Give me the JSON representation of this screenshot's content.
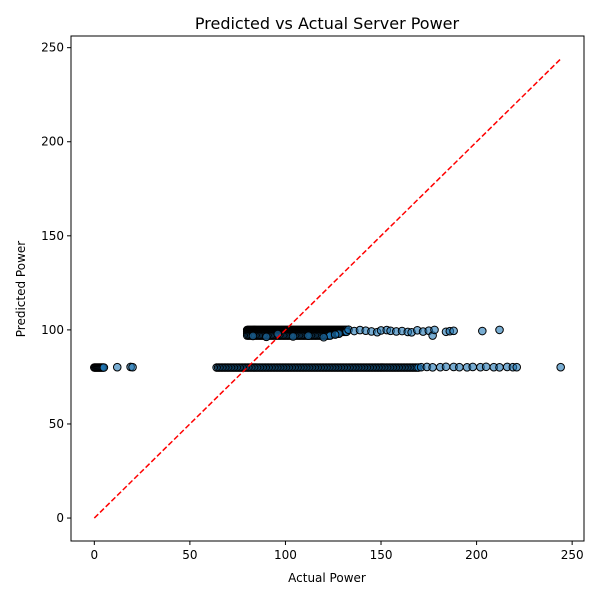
{
  "chart_data": {
    "type": "scatter",
    "title": "Predicted vs Actual Server Power",
    "xlabel": "Actual Power",
    "ylabel": "Predicted Power",
    "xlim": [
      -12.2,
      256.2
    ],
    "ylim": [
      -12.2,
      256.2
    ],
    "xticks": [
      0,
      50,
      100,
      150,
      200,
      250
    ],
    "yticks": [
      0,
      50,
      100,
      150,
      200,
      250
    ],
    "grid": false,
    "point_color": "#1f77b4",
    "point_edge_color": "#000000",
    "reference_line": {
      "x": [
        0,
        244
      ],
      "y": [
        0,
        244
      ],
      "color": "#ff0000",
      "style": "dashed"
    },
    "series": [
      {
        "clusters": [
          {
            "x_from": 0,
            "x_to": 5,
            "x_step": 0.5,
            "y": 80.0
          },
          {
            "x_from": 64,
            "x_to": 170,
            "x_step": 0.8,
            "y": 80.0
          },
          {
            "x_from": 80,
            "x_to": 132,
            "x_step": 0.5,
            "y": 100.0
          },
          {
            "x_from": 80,
            "x_to": 132,
            "x_step": 0.5,
            "y": 99.0
          },
          {
            "x_from": 80,
            "x_to": 128,
            "x_step": 0.6,
            "y": 98.0
          },
          {
            "x_from": 80,
            "x_to": 124,
            "x_step": 0.7,
            "y": 97.0
          }
        ],
        "points": [
          [
            12,
            80.2
          ],
          [
            19,
            80.3
          ],
          [
            20,
            80.2
          ],
          [
            171,
            80.2
          ],
          [
            174,
            80.3
          ],
          [
            177,
            80.1
          ],
          [
            181,
            80.2
          ],
          [
            184,
            80.4
          ],
          [
            188,
            80.3
          ],
          [
            191,
            80.2
          ],
          [
            195,
            80.1
          ],
          [
            198,
            80.3
          ],
          [
            202,
            80.2
          ],
          [
            205,
            80.4
          ],
          [
            209,
            80.2
          ],
          [
            212,
            80.1
          ],
          [
            216,
            80.3
          ],
          [
            219,
            80.2
          ],
          [
            221,
            80.2
          ],
          [
            244,
            80.2
          ],
          [
            133,
            100.1
          ],
          [
            136,
            99.4
          ],
          [
            139,
            99.9
          ],
          [
            142,
            99.6
          ],
          [
            145,
            99.2
          ],
          [
            148,
            98.8
          ],
          [
            150,
            99.7
          ],
          [
            153,
            99.9
          ],
          [
            155,
            99.5
          ],
          [
            158,
            99.2
          ],
          [
            161,
            99.4
          ],
          [
            164,
            98.9
          ],
          [
            166,
            98.7
          ],
          [
            169,
            99.8
          ],
          [
            172,
            99.1
          ],
          [
            175,
            99.6
          ],
          [
            177,
            97.0
          ],
          [
            178,
            100.0
          ],
          [
            184,
            99.0
          ],
          [
            186,
            99.3
          ],
          [
            188,
            99.5
          ],
          [
            203,
            99.4
          ],
          [
            212,
            100.0
          ],
          [
            83,
            96.8
          ],
          [
            90,
            96.3
          ],
          [
            96,
            97.8
          ],
          [
            104,
            96.5
          ],
          [
            112,
            96.9
          ],
          [
            120,
            96.1
          ],
          [
            126,
            97.5
          ]
        ]
      }
    ]
  }
}
